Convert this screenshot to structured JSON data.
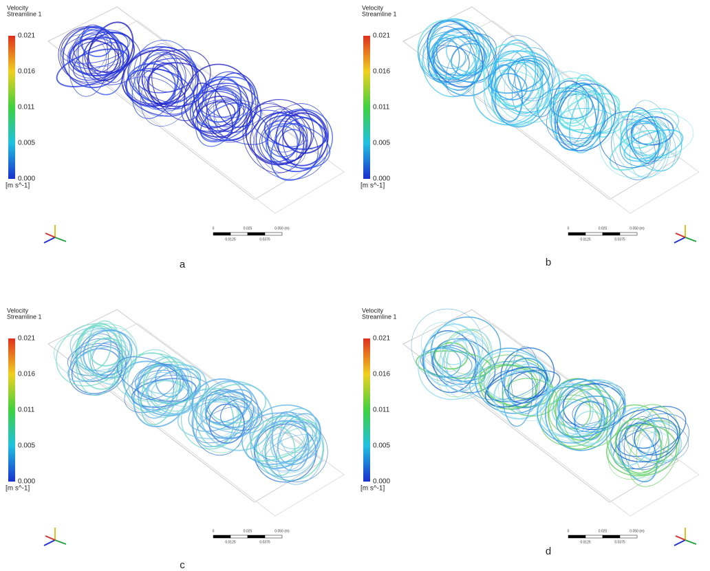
{
  "panels": [
    {
      "label": "a",
      "legend": {
        "title": "Velocity",
        "subtitle": "Streamline 1",
        "ticks": [
          "0.021",
          "0.016",
          "0.011",
          "0.005",
          "0.000"
        ],
        "unit": "[m s^-1]"
      },
      "scale": {
        "labels": [
          "0",
          "0.025",
          "0.050 (m)",
          "0.0125",
          "0.0375"
        ]
      }
    },
    {
      "label": "b",
      "legend": {
        "title": "Velocity",
        "subtitle": "Streamline 1",
        "ticks": [
          "0.021",
          "0.016",
          "0.011",
          "0.005",
          "0.000"
        ],
        "unit": "[m s^-1]"
      },
      "scale": {
        "labels": [
          "0",
          "0.025",
          "0.050 (m)",
          "0.0125",
          "0.0375"
        ]
      }
    },
    {
      "label": "c",
      "legend": {
        "title": "Velocity",
        "subtitle": "Streamline 1",
        "ticks": [
          "0.021",
          "0.016",
          "0.011",
          "0.005",
          "0.000"
        ],
        "unit": "[m s^-1]"
      },
      "scale": {
        "labels": [
          "0",
          "0.025",
          "0.050 (m)",
          "0.0125",
          "0.0375"
        ]
      }
    },
    {
      "label": "d",
      "legend": {
        "title": "Velocity",
        "subtitle": "Streamline 1",
        "ticks": [
          "0.021",
          "0.016",
          "0.011",
          "0.005",
          "0.000"
        ],
        "unit": "[m s^-1]"
      },
      "scale": {
        "labels": [
          "0",
          "0.025",
          "0.050 (m)",
          "0.0125",
          "0.0375"
        ]
      }
    }
  ]
}
